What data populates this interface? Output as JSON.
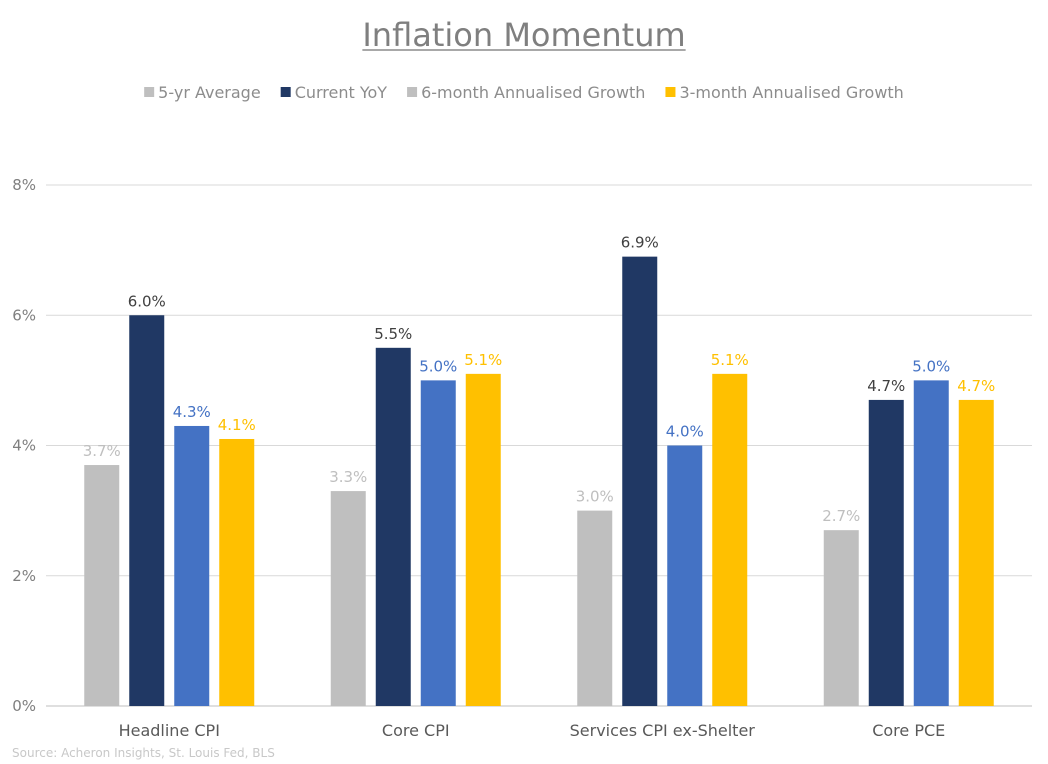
{
  "chart_data": {
    "type": "bar",
    "title": "Inflation Momentum",
    "categories": [
      "Headline CPI",
      "Core CPI",
      "Services CPI ex-Shelter",
      "Core PCE"
    ],
    "series": [
      {
        "name": "5-yr Average",
        "color": "#bfbfbf",
        "label_color": "#bfbfbf",
        "values": [
          3.7,
          3.3,
          3.0,
          2.7
        ],
        "labels": [
          "3.7%",
          "3.3%",
          "3.0%",
          "2.7%"
        ]
      },
      {
        "name": "Current YoY",
        "color": "#203864",
        "label_color": "#404040",
        "values": [
          6.0,
          5.5,
          6.9,
          4.7
        ],
        "labels": [
          "6.0%",
          "5.5%",
          "6.9%",
          "4.7%"
        ]
      },
      {
        "name": "6-month Annualised Growth",
        "color": "#4472c4",
        "label_color": "#4472c4",
        "values": [
          4.3,
          5.0,
          4.0,
          5.0
        ],
        "labels": [
          "4.3%",
          "5.0%",
          "4.0%",
          "5.0%"
        ]
      },
      {
        "name": "3-month Annualised Growth",
        "color": "#ffc000",
        "label_color": "#ffc000",
        "values": [
          4.1,
          5.1,
          5.1,
          4.7
        ],
        "labels": [
          "4.1%",
          "5.1%",
          "5.1%",
          "4.7%"
        ]
      }
    ],
    "legend_swatch_colors": [
      "#bfbfbf",
      "#203864",
      "#bfbfbf",
      "#ffc000"
    ],
    "ylim": [
      0,
      8
    ],
    "yticks": [
      0,
      2,
      4,
      6,
      8
    ],
    "ytick_labels": [
      "0%",
      "2%",
      "4%",
      "6%",
      "8%"
    ],
    "grid": true,
    "legend_position": "top",
    "source": "Source: Acheron Insights, St. Louis Fed, BLS"
  }
}
